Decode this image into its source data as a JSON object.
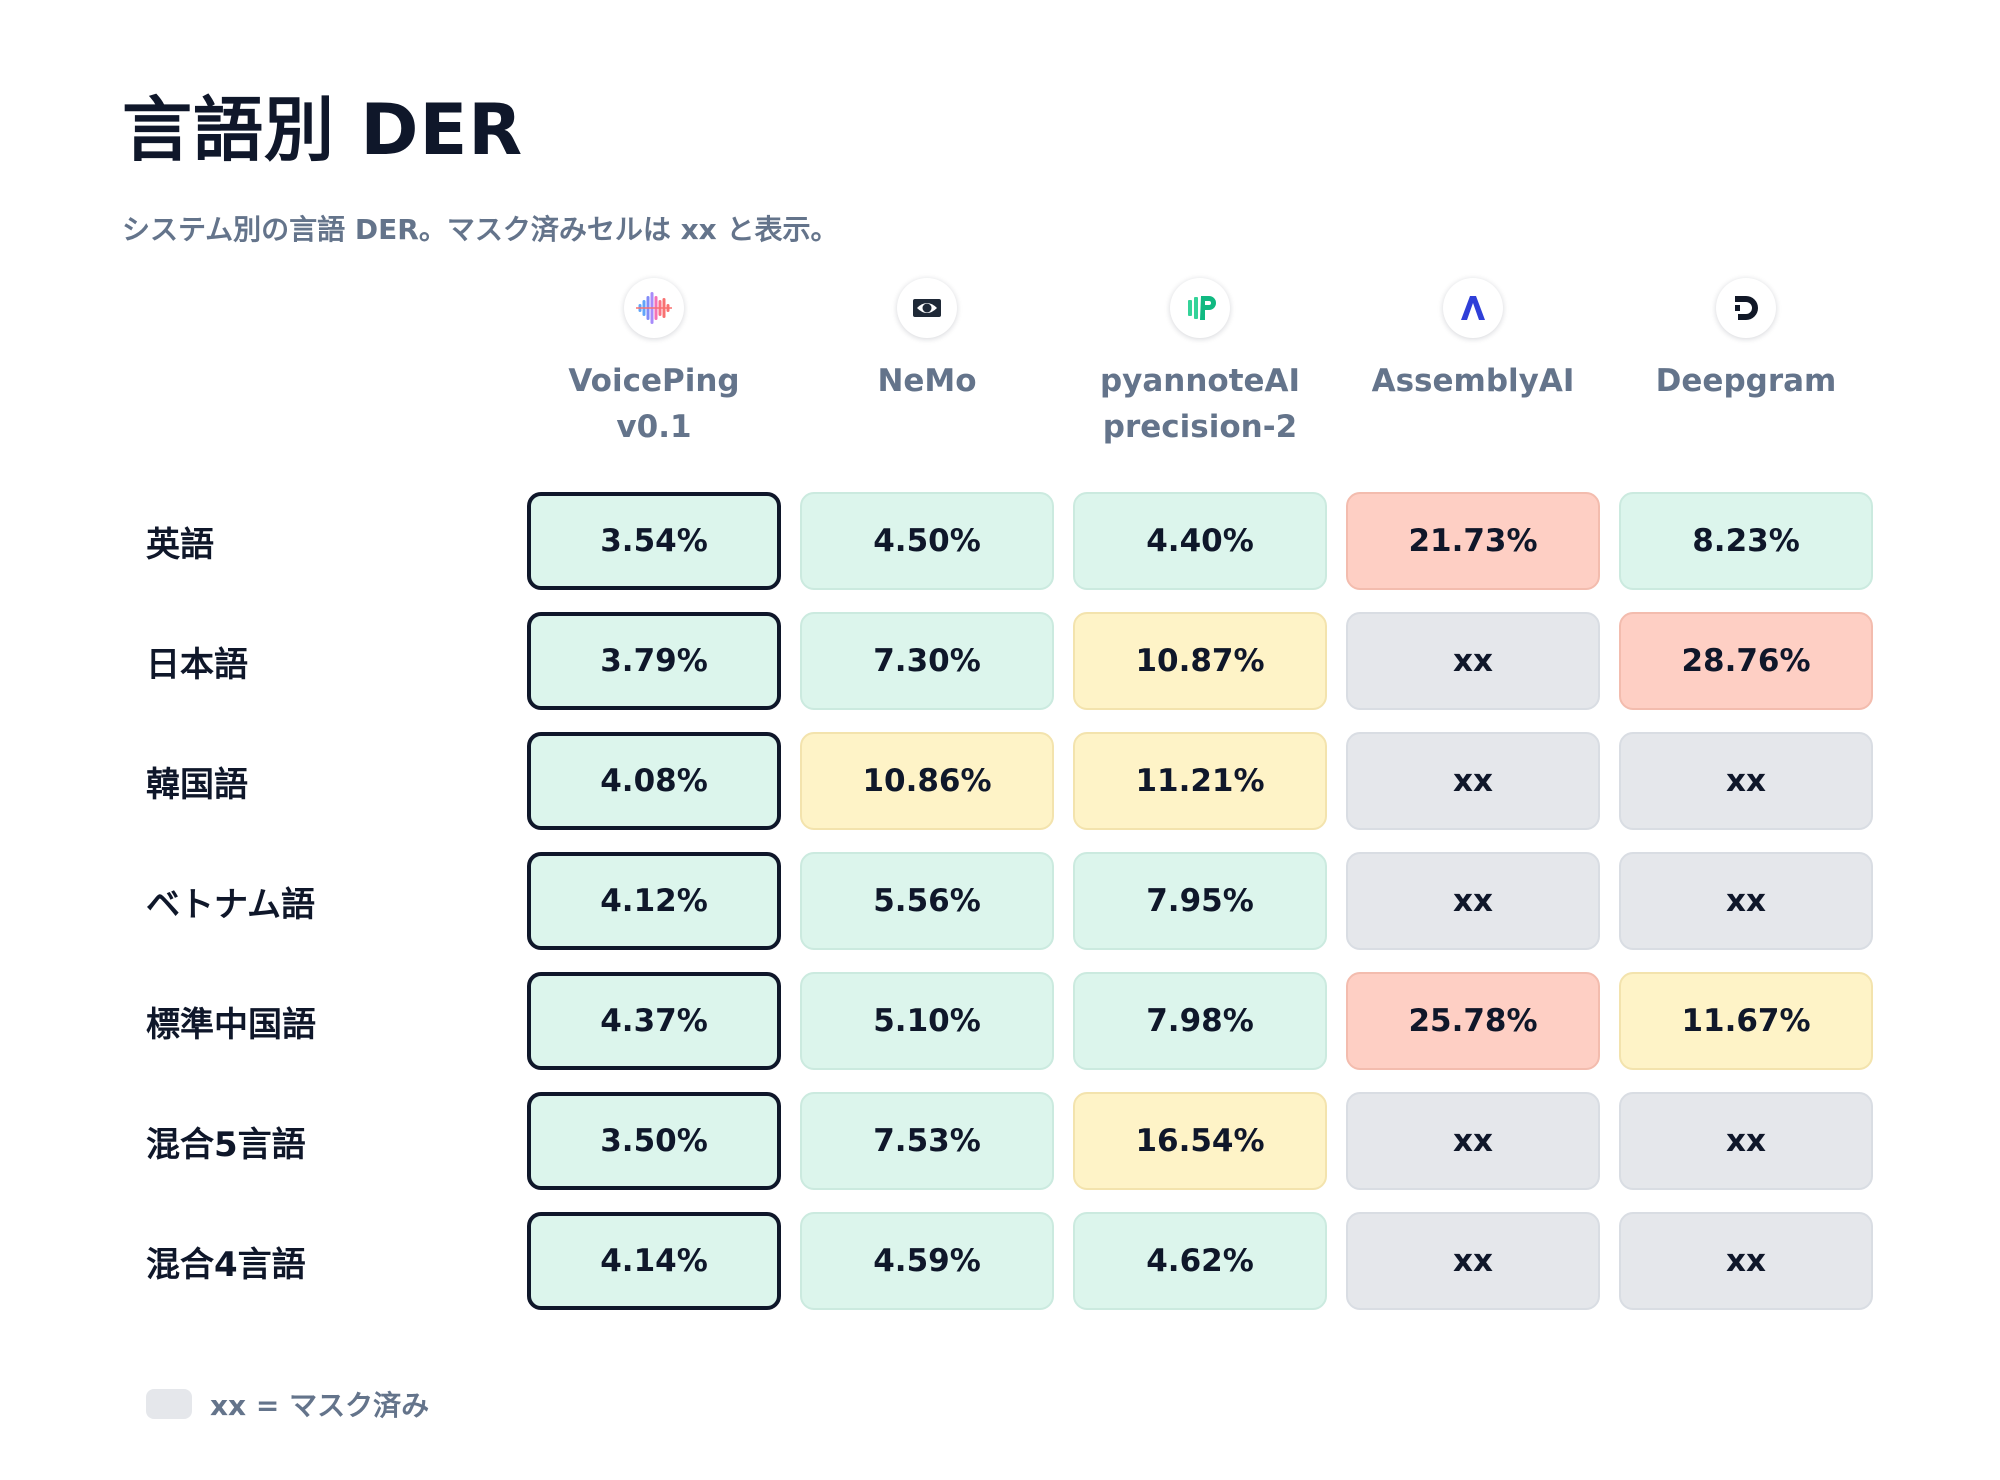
{
  "title": "言語別 DER",
  "subtitle": "システム別の言語 DER。マスク済みセルは xx と表示。",
  "chart_data": {
    "type": "table",
    "columns": [
      {
        "name": "VoicePing\nv0.1",
        "icon": "voiceping-waveform-icon"
      },
      {
        "name": "NeMo",
        "icon": "nvidia-eye-icon"
      },
      {
        "name": "pyannoteAI\nprecision-2",
        "icon": "pyannote-p-icon"
      },
      {
        "name": "AssemblyAI",
        "icon": "assemblyai-a-icon"
      },
      {
        "name": "Deepgram",
        "icon": "deepgram-d-icon"
      }
    ],
    "rows": [
      {
        "label": "英語",
        "values": [
          "3.54%",
          "4.50%",
          "4.40%",
          "21.73%",
          "8.23%"
        ],
        "levels": [
          "g",
          "g",
          "g",
          "r",
          "g"
        ]
      },
      {
        "label": "日本語",
        "values": [
          "3.79%",
          "7.30%",
          "10.87%",
          "xx",
          "28.76%"
        ],
        "levels": [
          "g",
          "g",
          "y",
          "m",
          "r"
        ]
      },
      {
        "label": "韓国語",
        "values": [
          "4.08%",
          "10.86%",
          "11.21%",
          "xx",
          "xx"
        ],
        "levels": [
          "g",
          "y",
          "y",
          "m",
          "m"
        ]
      },
      {
        "label": "ベトナム語",
        "values": [
          "4.12%",
          "5.56%",
          "7.95%",
          "xx",
          "xx"
        ],
        "levels": [
          "g",
          "g",
          "g",
          "m",
          "m"
        ]
      },
      {
        "label": "標準中国語",
        "values": [
          "4.37%",
          "5.10%",
          "7.98%",
          "25.78%",
          "11.67%"
        ],
        "levels": [
          "g",
          "g",
          "g",
          "r",
          "y"
        ]
      },
      {
        "label": "混合5言語",
        "values": [
          "3.50%",
          "7.53%",
          "16.54%",
          "xx",
          "xx"
        ],
        "levels": [
          "g",
          "g",
          "y",
          "m",
          "m"
        ]
      },
      {
        "label": "混合4言語",
        "values": [
          "4.14%",
          "4.59%",
          "4.62%",
          "xx",
          "xx"
        ],
        "levels": [
          "g",
          "g",
          "g",
          "m",
          "m"
        ]
      }
    ],
    "highlight_column": 0,
    "colors": {
      "good": "#dcf5ec",
      "medium": "#fef3c7",
      "bad": "#fecfc4",
      "masked": "#e5e7eb",
      "highlight_border": "#0f172a"
    },
    "legend": [
      {
        "label": "xx = マスク済み",
        "color": "#e5e7eb"
      }
    ]
  }
}
